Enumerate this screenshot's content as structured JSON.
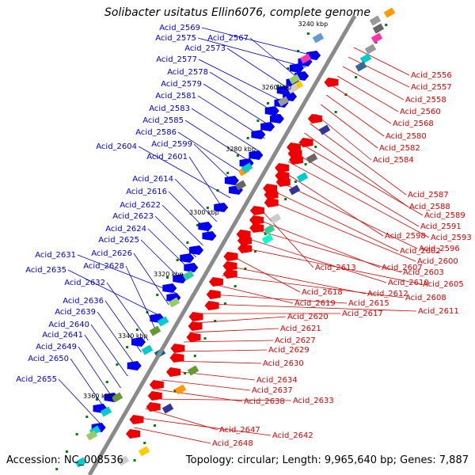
{
  "title": "Solibacter usitatus Ellin6076, complete genome",
  "footer": {
    "accession": "Accession: NC_008536",
    "info": "Topology: circular; Length: 9,965,640 bp; Genes: 7,887"
  },
  "colors": {
    "forward": "#0000ee",
    "reverse": "#ee0000",
    "backbone": "#8a8a8a",
    "rna": "#008000"
  },
  "scale_labels": [
    "3240 kbp",
    "3260 kbp",
    "3280 kbp",
    "3300 kbp",
    "3320 kbp",
    "3340 kbp",
    "3360 kbp"
  ],
  "left_labels": [
    "Acid_2569",
    "Acid_2575",
    "Acid_2567",
    "Acid_2573",
    "Acid_2577",
    "Acid_2578",
    "Acid_2579",
    "Acid_2581",
    "Acid_2583",
    "Acid_2585",
    "Acid_2586",
    "Acid_2599",
    "Acid_2604",
    "Acid_2601",
    "Acid_2614",
    "Acid_2616",
    "Acid_2622",
    "Acid_2623",
    "Acid_2624",
    "Acid_2625",
    "Acid_2631",
    "Acid_2626",
    "Acid_2635",
    "Acid_2628",
    "Acid_2632",
    "Acid_2636",
    "Acid_2639",
    "Acid_2640",
    "Acid_2641",
    "Acid_2649",
    "Acid_2650",
    "Acid_2655"
  ],
  "right_labels": [
    "Acid_2556",
    "Acid_2557",
    "Acid_2558",
    "Acid_2560",
    "Acid_2568",
    "Acid_2580",
    "Acid_2582",
    "Acid_2584",
    "Acid_2587",
    "Acid_2588",
    "Acid_2589",
    "Acid_2591",
    "Acid_2593",
    "Acid_2598",
    "Acid_2596",
    "Acid_2602",
    "Acid_2600",
    "Acid_2613",
    "Acid_2607",
    "Acid_2603",
    "Acid_2610",
    "Acid_2605",
    "Acid_2618",
    "Acid_2612",
    "Acid_2608",
    "Acid_2619",
    "Acid_2615",
    "Acid_2611",
    "Acid_2617",
    "Acid_2620",
    "Acid_2621",
    "Acid_2627",
    "Acid_2629",
    "Acid_2630",
    "Acid_2634",
    "Acid_2637",
    "Acid_2638",
    "Acid_2633",
    "Acid_2647",
    "Acid_2642",
    "Acid_2648"
  ]
}
